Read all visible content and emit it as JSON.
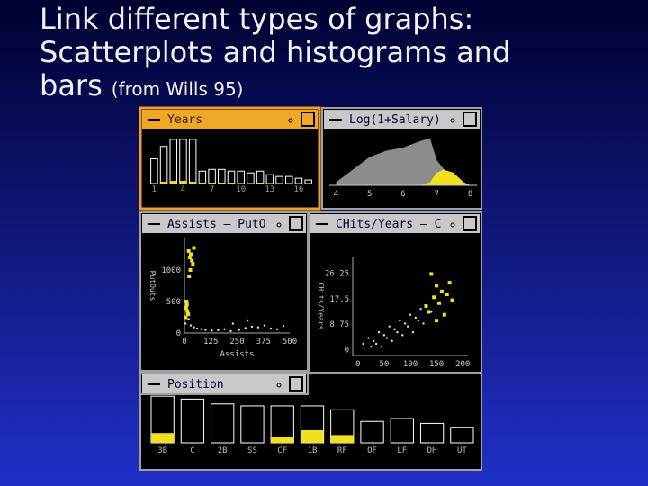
{
  "slide": {
    "title_lines": [
      "Link different types of graphs:",
      "Scatterplots and histograms and",
      "bars"
    ],
    "subtitle": "(from Wills 95)"
  },
  "panels": {
    "years": {
      "title": "Years",
      "xlim": [
        0.5,
        17.5
      ],
      "xticks": [
        1,
        4,
        7,
        10,
        13,
        16
      ],
      "ylim": [
        0,
        55
      ],
      "values": [
        28,
        42,
        50,
        50,
        50,
        14,
        16,
        16,
        14,
        14,
        12,
        14,
        10,
        8,
        8,
        6,
        4
      ],
      "selected": [
        0,
        2,
        3,
        3,
        2,
        1,
        1,
        1,
        1,
        0,
        0,
        1,
        0,
        0,
        0,
        0,
        0
      ]
    },
    "salary": {
      "title": "Log(1+Salary)",
      "xlim": [
        3.8,
        8.2
      ],
      "xticks": [
        4,
        5,
        6,
        7,
        8
      ],
      "ylim": [
        0,
        0.8
      ],
      "x": [
        4.0,
        4.5,
        5.0,
        5.5,
        6.0,
        6.5,
        6.8,
        7.0,
        7.3,
        7.6,
        8.0
      ],
      "values": [
        0.05,
        0.25,
        0.45,
        0.55,
        0.6,
        0.7,
        0.75,
        0.4,
        0.2,
        0.1,
        0
      ],
      "selected_x": [
        6.5,
        6.8,
        7.0,
        7.2,
        7.5,
        7.8,
        8.0
      ],
      "selected_values": [
        0,
        0.05,
        0.2,
        0.25,
        0.2,
        0.05,
        0
      ]
    },
    "assists": {
      "title": "Assists — PutO",
      "xlabel": "Assists",
      "ylabel": "PutOuts",
      "xlim": [
        0,
        500
      ],
      "xticks": [
        0,
        125,
        250,
        375,
        500
      ],
      "ylim": [
        0,
        1500
      ],
      "yticks": [
        0,
        500,
        1000
      ],
      "x": [
        5,
        12,
        20,
        30,
        45,
        60,
        80,
        100,
        130,
        160,
        190,
        220,
        260,
        290,
        320,
        350,
        380,
        410,
        440,
        470,
        230,
        300
      ],
      "y": [
        150,
        300,
        220,
        120,
        90,
        70,
        60,
        50,
        40,
        45,
        60,
        30,
        50,
        80,
        100,
        90,
        120,
        70,
        60,
        110,
        150,
        200
      ],
      "selected_x": [
        20,
        25,
        30,
        35,
        40,
        28,
        22,
        10,
        8,
        14,
        18,
        6,
        12,
        45
      ],
      "selected_y": [
        1300,
        1200,
        1250,
        1150,
        1100,
        1000,
        900,
        500,
        400,
        350,
        300,
        250,
        450,
        1350
      ]
    },
    "chits": {
      "title": "CHits/Years — C",
      "xlabel": "CHits/Years",
      "ylabel": "CHits/Years",
      "xlim": [
        -10,
        210
      ],
      "xticks": [
        0,
        50,
        100,
        150,
        200
      ],
      "ylim": [
        -2,
        32
      ],
      "yticks": [
        0,
        8.75,
        17.5,
        26.25
      ],
      "x": [
        10,
        20,
        30,
        40,
        50,
        60,
        70,
        80,
        90,
        100,
        110,
        120,
        35,
        55,
        75,
        95,
        115,
        65,
        85,
        45,
        25,
        105,
        125,
        140
      ],
      "y": [
        2,
        4,
        3,
        6,
        5,
        8,
        7,
        10,
        9,
        12,
        11,
        14,
        2,
        4,
        6,
        8,
        10,
        3,
        5,
        1,
        1,
        6,
        9,
        13
      ],
      "selected_x": [
        140,
        150,
        160,
        145,
        155,
        170,
        130,
        165,
        175,
        150,
        135,
        180
      ],
      "selected_y": [
        26,
        22,
        20,
        18,
        16,
        19,
        15,
        12,
        23,
        10,
        13,
        17
      ]
    },
    "position": {
      "title": "Position",
      "categories": [
        "3B",
        "C",
        "2B",
        "SS",
        "CF",
        "1B",
        "RF",
        "OF",
        "LF",
        "DH",
        "UT"
      ],
      "ylim": [
        0,
        50
      ],
      "values": [
        48,
        45,
        40,
        38,
        38,
        38,
        34,
        22,
        25,
        20,
        16
      ],
      "selected": [
        10,
        0,
        0,
        0,
        6,
        13,
        8,
        0,
        0,
        0,
        0
      ]
    }
  }
}
